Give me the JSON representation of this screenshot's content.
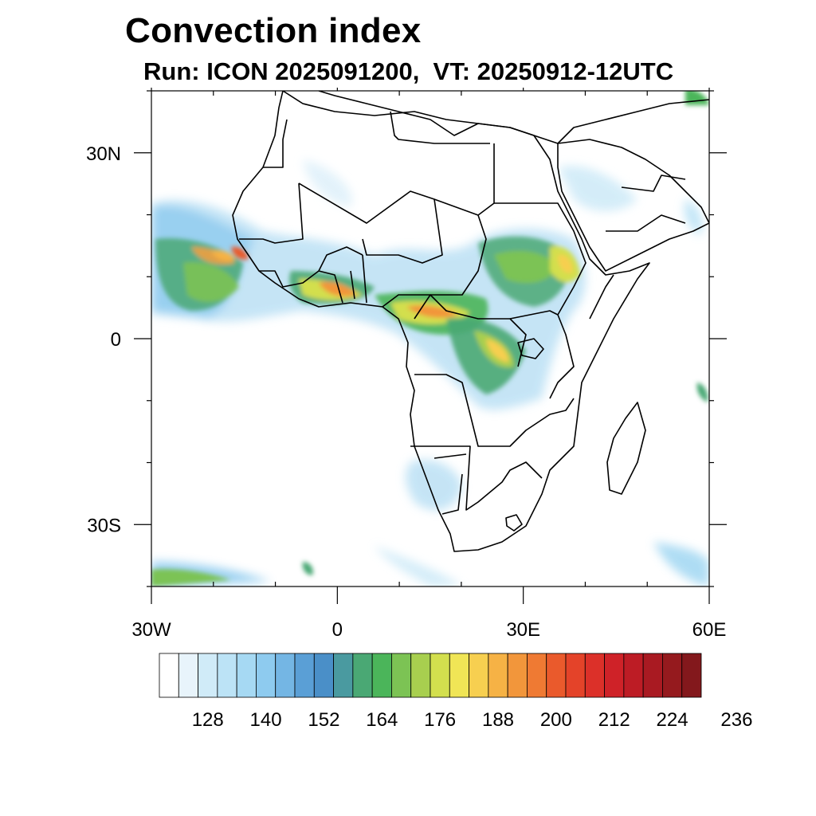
{
  "header": {
    "title": "Convection index",
    "subtitle": "Run: ICON 2025091200,  VT: 20250912-12UTC"
  },
  "map": {
    "lon_range": [
      -30,
      60
    ],
    "lat_range": [
      -40,
      40
    ],
    "lon_ticks": [
      {
        "value": -30,
        "label": "30W"
      },
      {
        "value": 0,
        "label": "0"
      },
      {
        "value": 30,
        "label": "30E"
      },
      {
        "value": 60,
        "label": "60E"
      }
    ],
    "lat_ticks": [
      {
        "value": 30,
        "label": "30N"
      },
      {
        "value": 0,
        "label": "0"
      },
      {
        "value": -30,
        "label": "30S"
      }
    ],
    "minor_lon_step": 10,
    "minor_lat_step": 10,
    "region": "Africa"
  },
  "colorbar": {
    "labels": [
      "128",
      "140",
      "152",
      "164",
      "176",
      "188",
      "200",
      "212",
      "224",
      "236"
    ],
    "colors": [
      "#ffffff",
      "#e8f4fb",
      "#d0ebf8",
      "#bce3f6",
      "#a6d9f3",
      "#8ecbef",
      "#74b6e4",
      "#5a9fd6",
      "#4a8fc8",
      "#4a9aa0",
      "#4aa874",
      "#4bb55a",
      "#7cc354",
      "#a8cf4f",
      "#d3df4e",
      "#f0e556",
      "#f7cf50",
      "#f6b245",
      "#f2963b",
      "#ef7a33",
      "#ea5a2c",
      "#e44329",
      "#dc3029",
      "#cf2228",
      "#bd1c25",
      "#a91a22",
      "#951a1e",
      "#83181c"
    ]
  }
}
